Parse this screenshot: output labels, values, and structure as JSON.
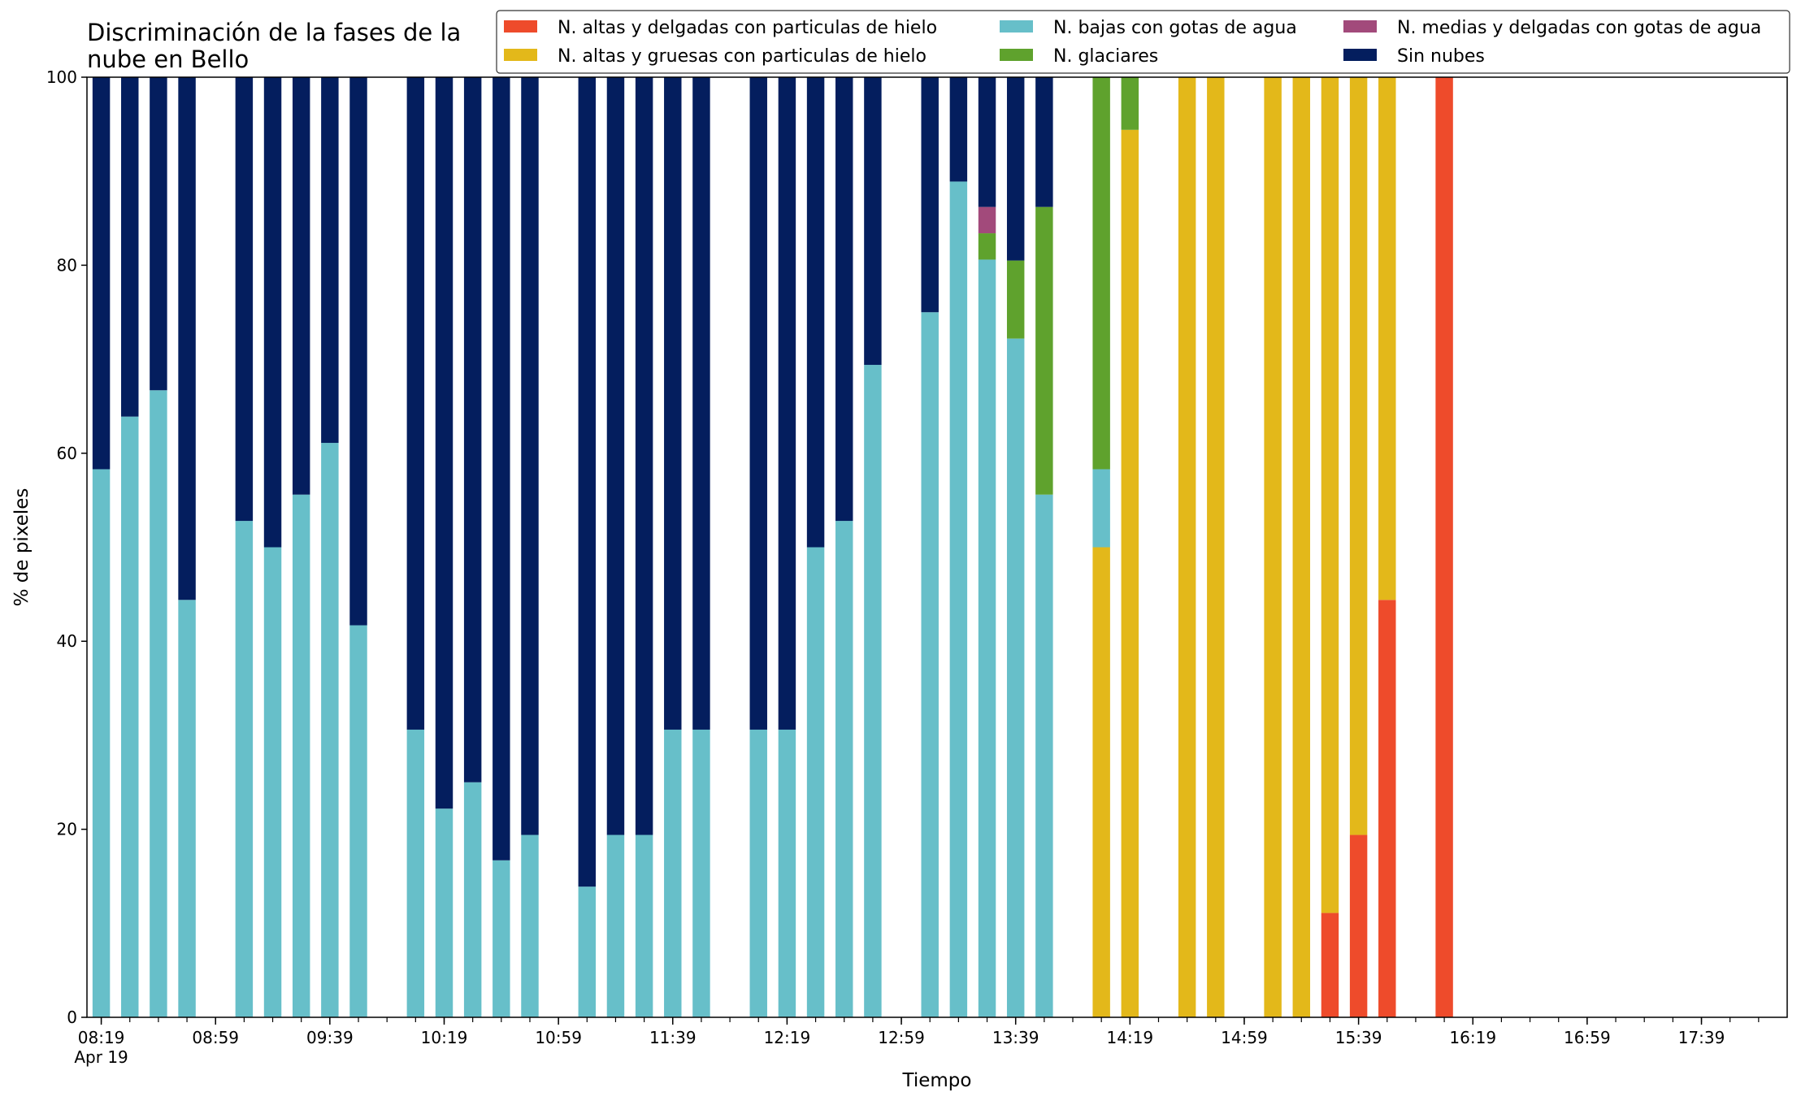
{
  "chart_data": {
    "type": "bar",
    "stacked": true,
    "title_lines": [
      "Discriminación de la fases de la",
      "nube en Bello"
    ],
    "xlabel": "Tiempo",
    "ylabel": "% de pixeles",
    "ylim": [
      0,
      100
    ],
    "yticks": [
      0,
      20,
      40,
      60,
      80,
      100
    ],
    "grid": false,
    "legend_position": "top",
    "x_range": [
      "08:14",
      "18:09"
    ],
    "time_slots": [
      "08:19",
      "08:29",
      "08:39",
      "08:49",
      "08:59",
      "09:09",
      "09:19",
      "09:29",
      "09:39",
      "09:49",
      "09:59",
      "10:09",
      "10:19",
      "10:29",
      "10:39",
      "10:49",
      "10:59",
      "11:09",
      "11:19",
      "11:29",
      "11:39",
      "11:49",
      "11:59",
      "12:09",
      "12:19",
      "12:29",
      "12:39",
      "12:49",
      "12:59",
      "13:09",
      "13:19",
      "13:29",
      "13:39",
      "13:49",
      "13:59",
      "14:09",
      "14:19",
      "14:29",
      "14:39",
      "14:49",
      "14:59",
      "15:09",
      "15:19",
      "15:29",
      "15:39",
      "15:49",
      "15:59",
      "16:09",
      "16:19",
      "16:29",
      "16:39",
      "16:49",
      "16:59",
      "17:09",
      "17:19",
      "17:29",
      "17:39",
      "17:49",
      "17:59"
    ],
    "xtick_labels": [
      "08:19",
      "08:59",
      "09:39",
      "10:19",
      "10:59",
      "11:39",
      "12:19",
      "12:59",
      "13:39",
      "14:19",
      "14:59",
      "15:39",
      "16:19",
      "16:59",
      "17:39"
    ],
    "xtick_sublabel": "Apr 19",
    "series": [
      {
        "name": "N. altas y delgadas con particulas de hielo",
        "color": "#ee4b2b",
        "values": [
          0,
          0,
          0,
          0,
          null,
          0,
          0,
          0,
          0,
          0,
          null,
          0,
          0,
          0,
          0,
          0,
          null,
          0,
          0,
          0,
          0,
          0,
          null,
          0,
          0,
          0,
          0,
          0,
          null,
          0,
          0,
          0,
          0,
          0,
          null,
          0,
          0,
          null,
          0,
          0,
          null,
          0,
          0,
          11.1,
          19.4,
          44.4,
          null,
          100,
          null,
          null,
          null,
          null,
          null,
          null,
          null,
          null,
          null,
          null,
          null
        ]
      },
      {
        "name": "N. altas y gruesas con particulas de hielo",
        "color": "#e3b81a",
        "values": [
          0,
          0,
          0,
          0,
          null,
          0,
          0,
          0,
          0,
          0,
          null,
          0,
          0,
          0,
          0,
          0,
          null,
          0,
          0,
          0,
          0,
          0,
          null,
          0,
          0,
          0,
          0,
          0,
          null,
          0,
          0,
          0,
          0,
          0,
          null,
          50,
          94.4,
          null,
          100,
          100,
          null,
          100,
          100,
          88.9,
          80.6,
          55.6,
          null,
          0,
          null,
          null,
          null,
          null,
          null,
          null,
          null,
          null,
          null,
          null,
          null
        ]
      },
      {
        "name": "N. bajas con gotas de agua",
        "color": "#67bfc9",
        "values": [
          58.3,
          63.9,
          66.7,
          44.4,
          null,
          52.8,
          50,
          55.6,
          61.1,
          41.7,
          null,
          30.6,
          22.2,
          25,
          16.7,
          19.4,
          null,
          13.9,
          19.4,
          19.4,
          30.6,
          30.6,
          null,
          30.6,
          30.6,
          50,
          52.8,
          69.4,
          null,
          75,
          88.9,
          80.6,
          72.2,
          55.6,
          null,
          8.3,
          0,
          null,
          0,
          0,
          null,
          0,
          0,
          0,
          0,
          0,
          null,
          0,
          null,
          null,
          null,
          null,
          null,
          null,
          null,
          null,
          null,
          null,
          null
        ]
      },
      {
        "name": "N. glaciares",
        "color": "#5fa22d",
        "values": [
          0,
          0,
          0,
          0,
          null,
          0,
          0,
          0,
          0,
          0,
          null,
          0,
          0,
          0,
          0,
          0,
          null,
          0,
          0,
          0,
          0,
          0,
          null,
          0,
          0,
          0,
          0,
          0,
          null,
          0,
          0,
          2.8,
          8.3,
          30.6,
          null,
          41.7,
          5.6,
          null,
          0,
          0,
          null,
          0,
          0,
          0,
          0,
          0,
          null,
          0,
          null,
          null,
          null,
          null,
          null,
          null,
          null,
          null,
          null,
          null,
          null
        ]
      },
      {
        "name": "N. medias y delgadas con gotas de agua",
        "color": "#a24a7b",
        "values": [
          0,
          0,
          0,
          0,
          null,
          0,
          0,
          0,
          0,
          0,
          null,
          0,
          0,
          0,
          0,
          0,
          null,
          0,
          0,
          0,
          0,
          0,
          null,
          0,
          0,
          0,
          0,
          0,
          null,
          0,
          0,
          2.8,
          0,
          0,
          null,
          0,
          0,
          null,
          0,
          0,
          null,
          0,
          0,
          0,
          0,
          0,
          null,
          0,
          null,
          null,
          null,
          null,
          null,
          null,
          null,
          null,
          null,
          null,
          null
        ]
      },
      {
        "name": "Sin nubes",
        "color": "#041e5e",
        "values": [
          41.7,
          36.1,
          33.3,
          55.6,
          null,
          47.2,
          50,
          44.4,
          38.9,
          58.3,
          null,
          69.4,
          77.8,
          75,
          83.3,
          80.6,
          null,
          86.1,
          80.6,
          80.6,
          69.4,
          69.4,
          null,
          69.4,
          69.4,
          50,
          47.2,
          30.6,
          null,
          25,
          11.1,
          13.8,
          19.5,
          13.8,
          null,
          0,
          0,
          null,
          0,
          0,
          null,
          0,
          0,
          0,
          0,
          0,
          null,
          0,
          null,
          null,
          null,
          null,
          null,
          null,
          null,
          null,
          null,
          null,
          null
        ]
      }
    ]
  }
}
